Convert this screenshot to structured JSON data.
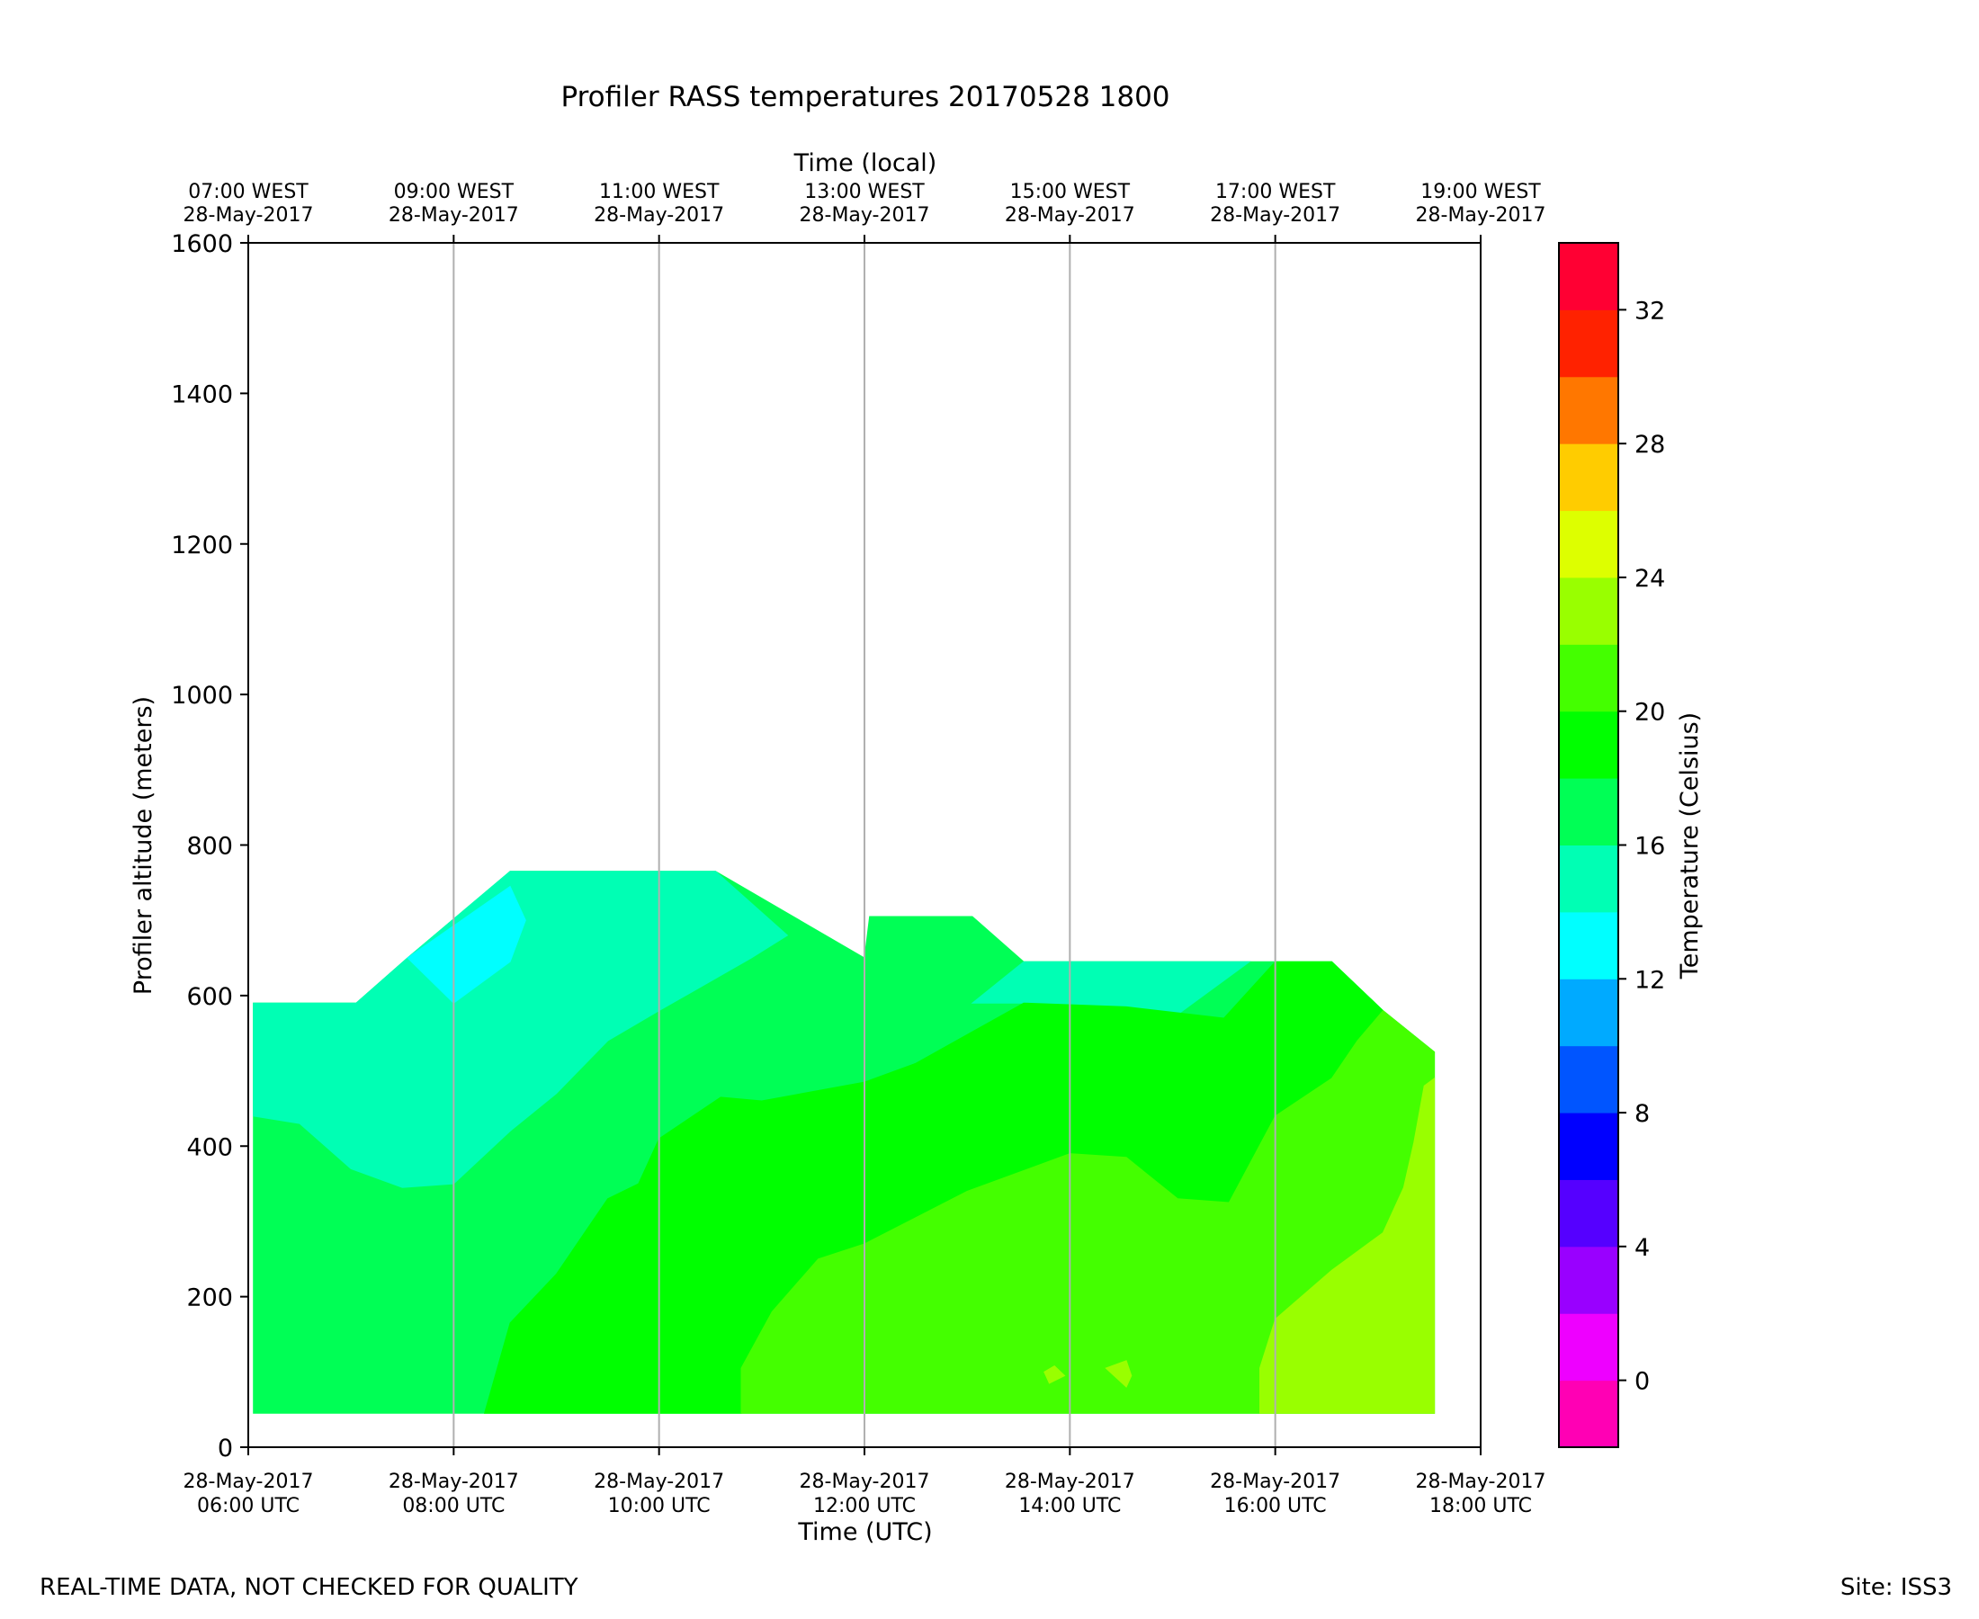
{
  "chart_data": {
    "type": "heatmap",
    "subtype": "filled-contour",
    "title": "Profiler RASS temperatures 20170528 1800",
    "xlabel": "Time (UTC)",
    "x2label": "Time (local)",
    "ylabel": "Profiler altitude (meters)",
    "colorbar_label": "Temperature (Celsius)",
    "xlim_hours_utc": [
      6,
      18
    ],
    "ylim": [
      0,
      1600
    ],
    "yticks": [
      0,
      200,
      400,
      600,
      800,
      1000,
      1200,
      1400,
      1600
    ],
    "xticks": [
      {
        "hour": 6,
        "date": "28-May-2017",
        "time": "06:00 UTC"
      },
      {
        "hour": 8,
        "date": "28-May-2017",
        "time": "08:00 UTC"
      },
      {
        "hour": 10,
        "date": "28-May-2017",
        "time": "10:00 UTC"
      },
      {
        "hour": 12,
        "date": "28-May-2017",
        "time": "12:00 UTC"
      },
      {
        "hour": 14,
        "date": "28-May-2017",
        "time": "14:00 UTC"
      },
      {
        "hour": 16,
        "date": "28-May-2017",
        "time": "16:00 UTC"
      },
      {
        "hour": 18,
        "date": "28-May-2017",
        "time": "18:00 UTC"
      }
    ],
    "xticks_top": [
      {
        "hour": 6,
        "time": "07:00 WEST",
        "date": "28-May-2017"
      },
      {
        "hour": 8,
        "time": "09:00 WEST",
        "date": "28-May-2017"
      },
      {
        "hour": 10,
        "time": "11:00 WEST",
        "date": "28-May-2017"
      },
      {
        "hour": 12,
        "time": "13:00 WEST",
        "date": "28-May-2017"
      },
      {
        "hour": 14,
        "time": "15:00 WEST",
        "date": "28-May-2017"
      },
      {
        "hour": 16,
        "time": "17:00 WEST",
        "date": "28-May-2017"
      },
      {
        "hour": 18,
        "time": "19:00 WEST",
        "date": "28-May-2017"
      }
    ],
    "colorbar": {
      "range": [
        -2,
        34
      ],
      "ticks": [
        0,
        4,
        8,
        12,
        16,
        20,
        24,
        28,
        32
      ],
      "levels": [
        {
          "from": -2,
          "to": 0,
          "color": "#ff00b4"
        },
        {
          "from": 0,
          "to": 2,
          "color": "#ee00ff"
        },
        {
          "from": 2,
          "to": 4,
          "color": "#9900ff"
        },
        {
          "from": 4,
          "to": 6,
          "color": "#5500ff"
        },
        {
          "from": 6,
          "to": 8,
          "color": "#0000ff"
        },
        {
          "from": 8,
          "to": 10,
          "color": "#0055ff"
        },
        {
          "from": 10,
          "to": 12,
          "color": "#00aaff"
        },
        {
          "from": 12,
          "to": 14,
          "color": "#00ffff"
        },
        {
          "from": 14,
          "to": 16,
          "color": "#00ffb4"
        },
        {
          "from": 16,
          "to": 18,
          "color": "#00ff55"
        },
        {
          "from": 18,
          "to": 20,
          "color": "#00ff00"
        },
        {
          "from": 20,
          "to": 22,
          "color": "#44ff00"
        },
        {
          "from": 22,
          "to": 24,
          "color": "#99ff00"
        },
        {
          "from": 24,
          "to": 26,
          "color": "#ddff00"
        },
        {
          "from": 26,
          "to": 28,
          "color": "#ffcc00"
        },
        {
          "from": 28,
          "to": 30,
          "color": "#ff7700"
        },
        {
          "from": 30,
          "to": 32,
          "color": "#ff2200"
        },
        {
          "from": 32,
          "to": 34,
          "color": "#ff0033"
        }
      ]
    },
    "contour_regions": [
      {
        "band": "16-18",
        "color": "#00ff55",
        "outline": [
          [
            6.05,
            45
          ],
          [
            6.05,
            590
          ],
          [
            7.05,
            590
          ],
          [
            7.55,
            650
          ],
          [
            8.55,
            765
          ],
          [
            10.55,
            765
          ],
          [
            12.0,
            650
          ],
          [
            12.05,
            705
          ],
          [
            13.05,
            705
          ],
          [
            13.55,
            645
          ],
          [
            15.75,
            645
          ],
          [
            16.55,
            645
          ],
          [
            17.05,
            580
          ],
          [
            17.55,
            525
          ],
          [
            17.55,
            45
          ]
        ]
      },
      {
        "band": "14-16",
        "color": "#00ffb4",
        "outline": [
          [
            6.05,
            440
          ],
          [
            6.05,
            590
          ],
          [
            7.05,
            590
          ],
          [
            7.55,
            650
          ],
          [
            8.55,
            765
          ],
          [
            10.55,
            765
          ],
          [
            11.25,
            680
          ],
          [
            10.9,
            650
          ],
          [
            10.0,
            580
          ],
          [
            9.5,
            540
          ],
          [
            9.0,
            470
          ],
          [
            8.55,
            420
          ],
          [
            8.0,
            350
          ],
          [
            7.5,
            345
          ],
          [
            7.0,
            370
          ],
          [
            6.5,
            430
          ]
        ]
      },
      {
        "band": "14-16",
        "color": "#00ffb4",
        "outline": [
          [
            13.05,
            590
          ],
          [
            13.55,
            590
          ],
          [
            15.0,
            570
          ],
          [
            15.75,
            645
          ],
          [
            13.55,
            645
          ]
        ]
      },
      {
        "band": "12-14",
        "color": "#00ffff",
        "outline": [
          [
            7.55,
            650
          ],
          [
            8.55,
            745
          ],
          [
            8.7,
            700
          ],
          [
            8.55,
            645
          ],
          [
            8.0,
            590
          ]
        ]
      },
      {
        "band": "18-20",
        "color": "#00ff00",
        "outline": [
          [
            8.3,
            45
          ],
          [
            8.55,
            165
          ],
          [
            9.0,
            230
          ],
          [
            9.5,
            330
          ],
          [
            9.8,
            350
          ],
          [
            10.0,
            410
          ],
          [
            10.6,
            465
          ],
          [
            11.0,
            460
          ],
          [
            12.0,
            485
          ],
          [
            12.5,
            510
          ],
          [
            13.55,
            590
          ],
          [
            14.55,
            585
          ],
          [
            15.5,
            570
          ],
          [
            16.0,
            645
          ],
          [
            16.55,
            645
          ],
          [
            17.05,
            580
          ],
          [
            16.8,
            540
          ],
          [
            16.55,
            490
          ],
          [
            16.0,
            440
          ],
          [
            15.55,
            325
          ],
          [
            15.05,
            330
          ],
          [
            14.55,
            385
          ],
          [
            14.0,
            390
          ],
          [
            13.0,
            340
          ],
          [
            12.0,
            270
          ],
          [
            11.55,
            250
          ],
          [
            11.1,
            180
          ],
          [
            10.8,
            105
          ],
          [
            10.8,
            45
          ]
        ]
      },
      {
        "band": "20-22",
        "color": "#44ff00",
        "outline": [
          [
            10.8,
            45
          ],
          [
            10.8,
            105
          ],
          [
            11.1,
            180
          ],
          [
            11.55,
            250
          ],
          [
            12.0,
            270
          ],
          [
            13.0,
            340
          ],
          [
            14.0,
            390
          ],
          [
            14.55,
            385
          ],
          [
            15.05,
            330
          ],
          [
            15.55,
            325
          ],
          [
            16.0,
            440
          ],
          [
            16.55,
            490
          ],
          [
            16.8,
            540
          ],
          [
            17.05,
            580
          ],
          [
            17.55,
            525
          ],
          [
            17.55,
            45
          ]
        ]
      },
      {
        "band": "22-24",
        "color": "#99ff00",
        "outline": [
          [
            15.85,
            45
          ],
          [
            15.85,
            105
          ],
          [
            16.0,
            170
          ],
          [
            16.55,
            235
          ],
          [
            17.05,
            285
          ],
          [
            17.25,
            345
          ],
          [
            17.35,
            405
          ],
          [
            17.45,
            480
          ],
          [
            17.55,
            490
          ],
          [
            17.55,
            45
          ]
        ]
      },
      {
        "band": "22-24",
        "color": "#99ff00",
        "outline": [
          [
            13.75,
            100
          ],
          [
            13.85,
            108
          ],
          [
            13.95,
            95
          ],
          [
            13.8,
            85
          ]
        ]
      },
      {
        "band": "22-24",
        "color": "#99ff00",
        "outline": [
          [
            14.35,
            105
          ],
          [
            14.55,
            115
          ],
          [
            14.6,
            95
          ],
          [
            14.55,
            80
          ]
        ]
      }
    ]
  },
  "footer": {
    "left_note": "REAL-TIME DATA, NOT CHECKED FOR QUALITY",
    "site": "Site: ISS3"
  }
}
